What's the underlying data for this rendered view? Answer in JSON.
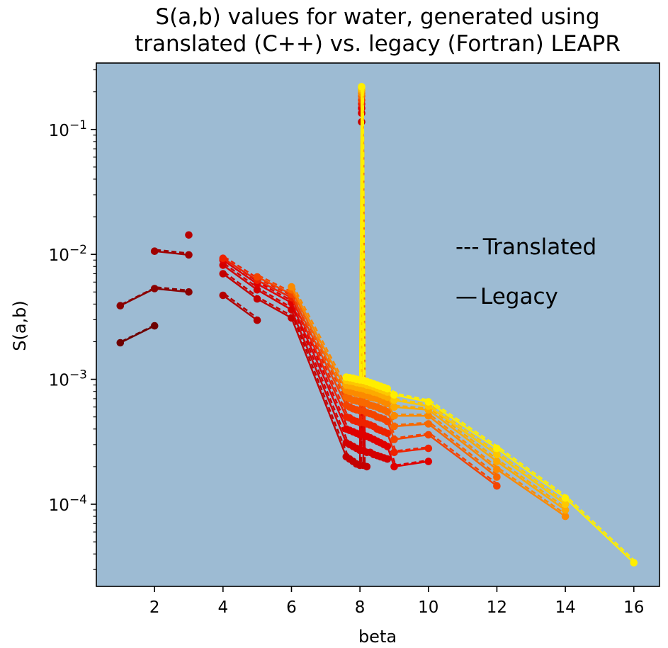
{
  "chart_data": {
    "type": "line",
    "title": [
      "S(a,b) values for water, generated using",
      "translated (C++) vs. legacy (Fortran) LEAPR"
    ],
    "xlabel": "beta",
    "ylabel": "S(a,b)",
    "xlim": [
      0.3,
      16.75
    ],
    "ylim": [
      2.2e-05,
      0.34
    ],
    "yscale": "log",
    "xticks": [
      2,
      4,
      6,
      8,
      10,
      12,
      14,
      16
    ],
    "yticks": [
      {
        "value": 0.0001,
        "mantissa": "10",
        "exp": "−4"
      },
      {
        "value": 0.001,
        "mantissa": "10",
        "exp": "−3"
      },
      {
        "value": 0.01,
        "mantissa": "10",
        "exp": "−2"
      },
      {
        "value": 0.1,
        "mantissa": "10",
        "exp": "−1"
      }
    ],
    "background": "#9dbbd3",
    "legend": {
      "placement": "center-right",
      "entries": [
        {
          "marker": "---",
          "label": "Translated"
        },
        {
          "marker": "—",
          "label": "Legacy"
        }
      ]
    },
    "series": [
      {
        "color": "#6e0000",
        "x": [
          1,
          2
        ],
        "y": [
          0.00196,
          0.00268
        ]
      },
      {
        "color": "#8a0000",
        "x": [
          1,
          2,
          3
        ],
        "y": [
          0.00388,
          0.00532,
          0.005
        ]
      },
      {
        "color": "#a00000",
        "x": [
          2,
          3
        ],
        "y": [
          0.0106,
          0.0099
        ]
      },
      {
        "color": "#b80000",
        "x": [
          3
        ],
        "y": [
          0.0143
        ]
      },
      {
        "color": "#b40000",
        "x": [
          4,
          5
        ],
        "y": [
          0.0047,
          0.00297
        ]
      },
      {
        "color": "#c40000",
        "x": [
          4,
          5,
          6,
          7.6,
          7.7,
          7.8,
          7.9,
          8.0,
          8.05,
          8.1,
          8.2
        ],
        "y": [
          0.007,
          0.0044,
          0.0031,
          0.00024,
          0.00023,
          0.00022,
          0.00021,
          0.000205,
          0.115,
          0.000205,
          0.0002
        ]
      },
      {
        "color": "#d40000",
        "x": [
          4,
          5,
          6,
          7.6,
          7.7,
          7.8,
          7.9,
          8.0,
          8.05,
          8.1,
          8.2,
          8.3,
          8.4,
          8.5,
          8.6,
          8.7,
          8.8
        ],
        "y": [
          0.0082,
          0.0052,
          0.0036,
          0.00031,
          0.0003,
          0.00029,
          0.00028,
          0.00027,
          0.135,
          0.00027,
          0.00026,
          0.00026,
          0.00025,
          0.000245,
          0.00024,
          0.000235,
          0.00023
        ]
      },
      {
        "color": "#e00000",
        "x": [
          4,
          5,
          6,
          7.6,
          7.7,
          7.8,
          7.9,
          8.0,
          8.05,
          8.1,
          8.2,
          8.3,
          8.4,
          8.5,
          8.6,
          8.7,
          8.8,
          9,
          10
        ],
        "y": [
          0.009,
          0.0058,
          0.0041,
          0.0004,
          0.00039,
          0.00038,
          0.00037,
          0.00036,
          0.148,
          0.00036,
          0.00035,
          0.00034,
          0.00033,
          0.00032,
          0.00031,
          0.0003,
          0.00029,
          0.0002,
          0.00022
        ]
      },
      {
        "color": "#ee2200",
        "x": [
          4,
          5,
          6,
          7.6,
          7.7,
          7.8,
          7.9,
          8.0,
          8.05,
          8.1,
          8.2,
          8.3,
          8.4,
          8.5,
          8.6,
          8.7,
          8.8,
          9,
          10
        ],
        "y": [
          0.0093,
          0.0062,
          0.0045,
          0.0005,
          0.00049,
          0.00047,
          0.00046,
          0.00045,
          0.16,
          0.00045,
          0.00044,
          0.00043,
          0.00042,
          0.0004,
          0.00039,
          0.00038,
          0.00037,
          0.00026,
          0.00028
        ]
      },
      {
        "color": "#f44400",
        "x": [
          5,
          6,
          7.6,
          7.7,
          7.8,
          7.9,
          8.0,
          8.05,
          8.1,
          8.2,
          8.3,
          8.4,
          8.5,
          8.6,
          8.7,
          8.8,
          9,
          10,
          12
        ],
        "y": [
          0.0066,
          0.0048,
          0.00062,
          0.0006,
          0.00058,
          0.00057,
          0.00056,
          0.172,
          0.00056,
          0.00054,
          0.00053,
          0.00052,
          0.0005,
          0.00049,
          0.00048,
          0.00046,
          0.00033,
          0.00036,
          0.00014
        ]
      },
      {
        "color": "#f86800",
        "x": [
          6,
          7.6,
          7.7,
          7.8,
          7.9,
          8.0,
          8.05,
          8.1,
          8.2,
          8.3,
          8.4,
          8.5,
          8.6,
          8.7,
          8.8,
          9,
          10,
          12
        ],
        "y": [
          0.0052,
          0.00072,
          0.0007,
          0.00068,
          0.00067,
          0.00066,
          0.185,
          0.00065,
          0.00064,
          0.00062,
          0.00061,
          0.0006,
          0.00058,
          0.00057,
          0.00055,
          0.00042,
          0.00044,
          0.000165
        ]
      },
      {
        "color": "#fb8a00",
        "x": [
          6,
          7.6,
          7.7,
          7.8,
          7.9,
          8.0,
          8.05,
          8.1,
          8.2,
          8.3,
          8.4,
          8.5,
          8.6,
          8.7,
          8.8,
          9,
          10,
          12,
          14
        ],
        "y": [
          0.0055,
          0.00082,
          0.0008,
          0.00079,
          0.00077,
          0.00076,
          0.195,
          0.00075,
          0.00074,
          0.00072,
          0.00071,
          0.0007,
          0.00068,
          0.00066,
          0.00064,
          0.00051,
          0.00051,
          0.00019,
          8e-05
        ]
      },
      {
        "color": "#fcaa00",
        "x": [
          7.6,
          7.7,
          7.8,
          7.9,
          8.0,
          8.05,
          8.1,
          8.2,
          8.3,
          8.4,
          8.5,
          8.6,
          8.7,
          8.8,
          9,
          10,
          12,
          14
        ],
        "y": [
          0.0009,
          0.00089,
          0.00088,
          0.00086,
          0.00085,
          0.205,
          0.00084,
          0.00082,
          0.00081,
          0.00079,
          0.00078,
          0.00076,
          0.00074,
          0.00072,
          0.0006,
          0.00057,
          0.00022,
          9e-05
        ]
      },
      {
        "color": "#fdc800",
        "x": [
          7.6,
          7.7,
          7.8,
          7.9,
          8.0,
          8.05,
          8.1,
          8.2,
          8.3,
          8.4,
          8.5,
          8.6,
          8.7,
          8.8,
          9,
          10,
          12,
          14
        ],
        "y": [
          0.00098,
          0.00097,
          0.00096,
          0.00094,
          0.00093,
          0.212,
          0.00092,
          0.0009,
          0.00089,
          0.00087,
          0.00085,
          0.00083,
          0.00081,
          0.00079,
          0.00068,
          0.00061,
          0.00025,
          0.0001
        ]
      },
      {
        "color": "#ffee00",
        "x": [
          7.6,
          7.7,
          7.8,
          7.9,
          8.0,
          8.05,
          8.1,
          8.2,
          8.3,
          8.4,
          8.5,
          8.6,
          8.7,
          8.8,
          9,
          10,
          12,
          14,
          16
        ],
        "y": [
          0.00104,
          0.00103,
          0.00102,
          0.001,
          0.00099,
          0.22,
          0.00098,
          0.00096,
          0.00094,
          0.00092,
          0.0009,
          0.00088,
          0.00086,
          0.00084,
          0.00075,
          0.00066,
          0.00028,
          0.000112,
          3.4e-05
        ]
      }
    ]
  }
}
